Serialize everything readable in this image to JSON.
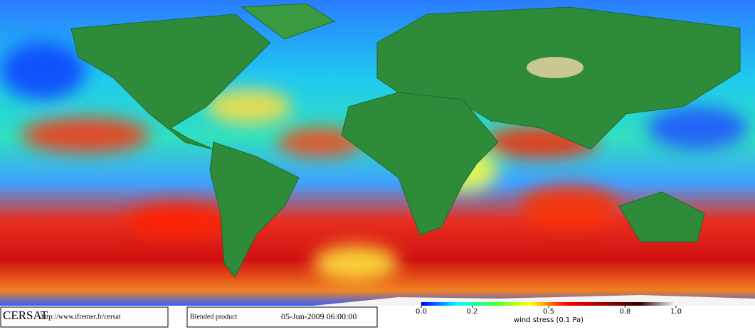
{
  "footer": {
    "logo": "CERSAT",
    "url": "http://www.ifremer.fr/cersat",
    "product": "Blended product",
    "date": "05-Jun-2009 06:00:00"
  },
  "colorbar": {
    "label": "wind stress (0.1 Pa)",
    "lim": [
      0,
      1
    ],
    "ticks": [
      {
        "value": 0,
        "label": "0.0"
      },
      {
        "value": 0.2,
        "label": "0.2"
      },
      {
        "value": 0.5,
        "label": "0.5"
      },
      {
        "value": 0.8,
        "label": "0.8"
      },
      {
        "value": 1,
        "label": "1.0"
      }
    ],
    "colors": [
      "#0000ff",
      "#00ffff",
      "#40ff40",
      "#ffff00",
      "#ff0000",
      "#a00000",
      "#300000",
      "#ffffff"
    ]
  }
}
